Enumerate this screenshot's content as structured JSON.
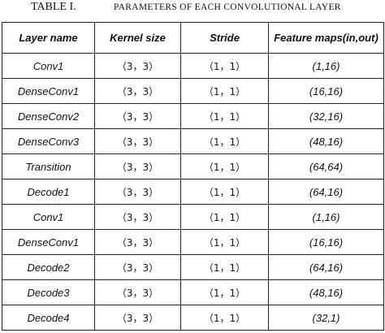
{
  "caption": {
    "label": "TABLE I.",
    "title": "PARAMETERS OF EACH CONVOLUTIONAL LAYER"
  },
  "table": {
    "header": [
      "Layer name",
      "Kernel size",
      "Stride",
      "Feature maps(in,out)"
    ],
    "rows": [
      [
        "Conv1",
        "（3，3）",
        "（1，1）",
        "(1,16)"
      ],
      [
        "DenseConv1",
        "（3，3）",
        "（1，1）",
        "(16,16)"
      ],
      [
        "DenseConv2",
        "（3，3）",
        "（1，1）",
        "(32,16)"
      ],
      [
        "DenseConv3",
        "（3，3）",
        "（1，1）",
        "(48,16)"
      ],
      [
        "Transition",
        "（3，3）",
        "（1，1）",
        "(64,64)"
      ],
      [
        "Decode1",
        "（3，3）",
        "（1，1）",
        "(64,16)"
      ],
      [
        "Conv1",
        "（3，3）",
        "（1，1）",
        "(1,16)"
      ],
      [
        "DenseConv1",
        "（3，3）",
        "（1，1）",
        "(16,16)"
      ],
      [
        "Decode2",
        "（3，3）",
        "（1，1）",
        "(64,16)"
      ],
      [
        "Decode3",
        "（3，3）",
        "（1，1）",
        "(48,16)"
      ],
      [
        "Decode4",
        "（3，3）",
        "（1，1）",
        "(32,1)"
      ]
    ]
  }
}
